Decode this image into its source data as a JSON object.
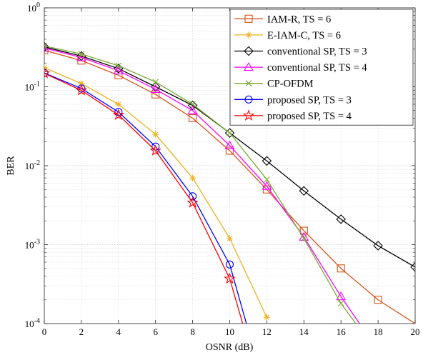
{
  "chart_data": {
    "type": "line",
    "title": "",
    "xlabel": "OSNR (dB)",
    "ylabel": "BER",
    "xlim": [
      0,
      20
    ],
    "ylim": [
      0.0001,
      1
    ],
    "yscale": "log",
    "grid": true,
    "legend_position": "top-right",
    "x_ticks": [
      0,
      2,
      4,
      6,
      8,
      10,
      12,
      14,
      16,
      18,
      20
    ],
    "x_tick_labels": [
      "0",
      "2",
      "4",
      "6",
      "8",
      "10",
      "12",
      "14",
      "16",
      "18",
      "20"
    ],
    "y_ticks": [
      {
        "value": 1,
        "base": "10",
        "exp": "0"
      },
      {
        "value": 0.1,
        "base": "10",
        "exp": "-1"
      },
      {
        "value": 0.01,
        "base": "10",
        "exp": "-2"
      },
      {
        "value": 0.001,
        "base": "10",
        "exp": "-3"
      },
      {
        "value": 0.0001,
        "base": "10",
        "exp": "-4"
      }
    ],
    "series": [
      {
        "name": "IAM-R, TS = 6",
        "color": "#D95319",
        "marker": "square",
        "x": [
          0,
          2,
          4,
          6,
          8,
          10,
          12,
          14,
          16,
          18,
          20
        ],
        "y": [
          0.29,
          0.215,
          0.14,
          0.08,
          0.04,
          0.0155,
          0.005,
          0.0015,
          0.0005,
          0.0002,
          0.0001
        ]
      },
      {
        "name": "E-IAM-C, TS = 6",
        "color": "#EDB120",
        "marker": "asterisk",
        "x": [
          0,
          2,
          4,
          6,
          8,
          10,
          12
        ],
        "y": [
          0.175,
          0.11,
          0.06,
          0.025,
          0.007,
          0.0012,
          0.00012
        ]
      },
      {
        "name": "conventional SP, TS = 3",
        "color": "#000000",
        "marker": "diamond",
        "x": [
          0,
          2,
          4,
          6,
          8,
          10,
          12,
          14,
          16,
          18,
          20
        ],
        "y": [
          0.32,
          0.245,
          0.17,
          0.1,
          0.058,
          0.026,
          0.0115,
          0.0048,
          0.0021,
          0.00097,
          0.00052
        ]
      },
      {
        "name": "conventional SP, TS = 4",
        "color": "#FF00FF",
        "marker": "triangle",
        "x": [
          0,
          2,
          4,
          6,
          8,
          10,
          12,
          14,
          16,
          17
        ],
        "y": [
          0.31,
          0.235,
          0.16,
          0.093,
          0.05,
          0.018,
          0.0055,
          0.00125,
          0.00022,
          0.0001
        ]
      },
      {
        "name": "CP-OFDM",
        "color": "#77AC30",
        "marker": "x",
        "x": [
          0,
          2,
          4,
          6,
          8,
          10,
          12,
          14,
          16,
          16.8
        ],
        "y": [
          0.33,
          0.26,
          0.185,
          0.115,
          0.06,
          0.026,
          0.0067,
          0.0012,
          0.00018,
          0.0001
        ]
      },
      {
        "name": "proposed SP, TS = 3",
        "color": "#0000FF",
        "marker": "circle",
        "x": [
          0,
          2,
          4,
          6,
          8,
          10,
          10.9
        ],
        "y": [
          0.15,
          0.095,
          0.048,
          0.0175,
          0.0041,
          0.00056,
          0.0001
        ]
      },
      {
        "name": "proposed SP, TS = 4",
        "color": "#FF0000",
        "marker": "star",
        "x": [
          0,
          2,
          4,
          6,
          8,
          10,
          10.7
        ],
        "y": [
          0.148,
          0.09,
          0.044,
          0.0155,
          0.0034,
          0.00037,
          0.0001
        ]
      }
    ]
  }
}
